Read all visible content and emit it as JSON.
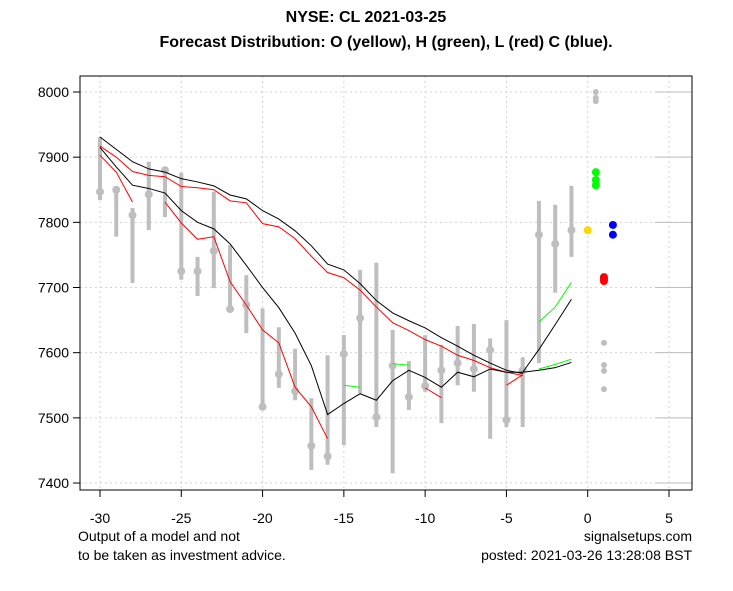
{
  "chart_data": {
    "type": "line",
    "title": "NYSE: CL 2021-03-25",
    "subtitle": "Forecast Distribution: O (yellow), H (green), L (red) C (blue).",
    "xlabel": "",
    "ylabel": "",
    "xlim": [
      -32.2,
      6.5
    ],
    "ylim": [
      7390,
      8025
    ],
    "xticks": [
      -30,
      -25,
      -20,
      -15,
      -10,
      -5,
      0,
      5
    ],
    "yticks": [
      7400,
      7500,
      7600,
      7700,
      7800,
      7900,
      8000
    ],
    "grid": true,
    "range_bars": {
      "color": "#bebebe",
      "x": [
        -30,
        -29,
        -28,
        -27,
        -26,
        -25,
        -24,
        -23,
        -22,
        -21,
        -20,
        -19,
        -18,
        -17,
        -16,
        -15,
        -14,
        -13,
        -12,
        -11,
        -10,
        -9,
        -8,
        -7,
        -6,
        -5,
        -4,
        -3,
        -2,
        -1
      ],
      "low": [
        7834,
        7778,
        7707,
        7788,
        7808,
        7712,
        7687,
        7699,
        7662,
        7630,
        7512,
        7546,
        7527,
        7420,
        7428,
        7458,
        7538,
        7486,
        7415,
        7512,
        7540,
        7492,
        7550,
        7540,
        7468,
        7486,
        7486,
        7584,
        7692,
        7747
      ],
      "high": [
        7931,
        7853,
        7822,
        7893,
        7885,
        7876,
        7747,
        7847,
        7765,
        7719,
        7668,
        7639,
        7606,
        7530,
        7596,
        7627,
        7727,
        7738,
        7635,
        7587,
        7627,
        7612,
        7641,
        7644,
        7622,
        7650,
        7593,
        7833,
        7827,
        7856
      ],
      "close": [
        7847,
        7850,
        7811,
        7843,
        7880,
        7725,
        7725,
        7756,
        7667,
        7673,
        7517,
        7567,
        7541,
        7457,
        7441,
        7598,
        7653,
        7501,
        7580,
        7532,
        7549,
        7573,
        7584,
        7575,
        7604,
        7497,
        7573,
        7781,
        7767,
        7788
      ]
    },
    "series": [
      {
        "name": "upper-band",
        "color": "#000000",
        "x": [
          -30,
          -29,
          -28,
          -27,
          -26,
          -25,
          -24,
          -23,
          -22,
          -21,
          -20,
          -19,
          -18,
          -17,
          -16,
          -15,
          -14,
          -13,
          -12,
          -11,
          -10,
          -9,
          -8,
          -7,
          -6,
          -5,
          -4
        ],
        "y": [
          7931,
          7912,
          7893,
          7882,
          7877,
          7867,
          7862,
          7856,
          7842,
          7836,
          7818,
          7805,
          7787,
          7764,
          7736,
          7727,
          7706,
          7680,
          7661,
          7649,
          7638,
          7623,
          7610,
          7596,
          7584,
          7573,
          7568
        ]
      },
      {
        "name": "upper-band-low",
        "color": "#ff0000",
        "x": [
          -30,
          -29,
          -28,
          -27,
          -26,
          -25,
          -24,
          -23,
          -22,
          -21,
          -20,
          -19,
          -18,
          -17,
          -16,
          -15,
          -14,
          -13,
          -12,
          -11,
          -10,
          -9,
          -8,
          -7,
          -6,
          -5,
          -4
        ],
        "y": [
          7917,
          7900,
          7878,
          7872,
          7870,
          7855,
          7853,
          7850,
          7833,
          7830,
          7798,
          7793,
          7775,
          7748,
          7723,
          7715,
          7696,
          7670,
          7646,
          7634,
          7620,
          7610,
          7596,
          7588,
          7577,
          7570,
          7565
        ]
      },
      {
        "name": "lower-band",
        "color": "#000000",
        "x": [
          -30,
          -29,
          -28,
          -27,
          -26,
          -25,
          -24,
          -23,
          -22,
          -21,
          -20,
          -19,
          -18,
          -17,
          -16,
          -15,
          -14,
          -13,
          -12,
          -11,
          -10,
          -9,
          -8,
          -7,
          -6,
          -5,
          -4,
          -3,
          -2,
          -1
        ],
        "y": [
          7915,
          7885,
          7857,
          7852,
          7845,
          7818,
          7800,
          7790,
          7767,
          7734,
          7700,
          7669,
          7630,
          7580,
          7505,
          7522,
          7537,
          7527,
          7557,
          7573,
          7562,
          7547,
          7570,
          7563,
          7575,
          7570,
          7570,
          7573,
          7577,
          7585
        ]
      },
      {
        "name": "lower-band-up-branch",
        "color": "#000000",
        "x": [
          -4,
          -3,
          -2,
          -1
        ],
        "y": [
          7570,
          7605,
          7643,
          7682
        ]
      },
      {
        "name": "lower-band-low-1",
        "color": "#ff0000",
        "x": [
          -30,
          -29,
          -28
        ],
        "y": [
          7903,
          7877,
          7831
        ]
      },
      {
        "name": "lower-band-low-2",
        "color": "#ff0000",
        "x": [
          -26,
          -25,
          -24,
          -23,
          -22,
          -21,
          -20,
          -19,
          -18,
          -17,
          -16
        ],
        "y": [
          7831,
          7799,
          7774,
          7778,
          7709,
          7673,
          7635,
          7615,
          7547,
          7517,
          7468
        ]
      },
      {
        "name": "lower-band-low-3",
        "color": "#ff0000",
        "x": [
          -10,
          -9
        ],
        "y": [
          7546,
          7531
        ]
      },
      {
        "name": "lower-band-low-4",
        "color": "#ff0000",
        "x": [
          -5,
          -4
        ],
        "y": [
          7550,
          7566
        ]
      },
      {
        "name": "lower-band-high-1",
        "color": "#00ff00",
        "x": [
          -15,
          -14
        ],
        "y": [
          7550,
          7547
        ]
      },
      {
        "name": "lower-band-high-2",
        "color": "#00ff00",
        "x": [
          -12,
          -11
        ],
        "y": [
          7583,
          7581
        ]
      },
      {
        "name": "forecast-high-upper",
        "color": "#00ff00",
        "x": [
          -3,
          -2,
          -1
        ],
        "y": [
          7647,
          7670,
          7708
        ]
      },
      {
        "name": "forecast-high-lower",
        "color": "#00ff00",
        "x": [
          -3,
          -2,
          -1
        ],
        "y": [
          7575,
          7582,
          7590
        ]
      }
    ],
    "forecast_points": [
      {
        "name": "open",
        "color": "#ffd700",
        "x": 0.0,
        "values": [
          7788
        ]
      },
      {
        "name": "high",
        "color": "#00ff00",
        "x": 0.5,
        "values": [
          7877,
          7865,
          7857
        ]
      },
      {
        "name": "high-extreme",
        "color": "#bebebe",
        "x": 0.5,
        "values": [
          8000,
          7991,
          7986
        ]
      },
      {
        "name": "low",
        "color": "#ff0000",
        "x": 1.0,
        "values": [
          7716,
          7713,
          7710
        ]
      },
      {
        "name": "low-extreme",
        "color": "#bebebe",
        "x": 1.0,
        "values": [
          7615,
          7581,
          7572,
          7544
        ]
      },
      {
        "name": "close",
        "color": "#0000ff",
        "x": 1.55,
        "values": [
          7796,
          7781
        ]
      }
    ]
  },
  "footer": {
    "disclaimer_line1": "Output of a model and not",
    "disclaimer_line2": "to be taken as investment advice.",
    "site": "signalsetups.com",
    "posted": "posted: 2021-03-26 13:28:08 BST"
  }
}
